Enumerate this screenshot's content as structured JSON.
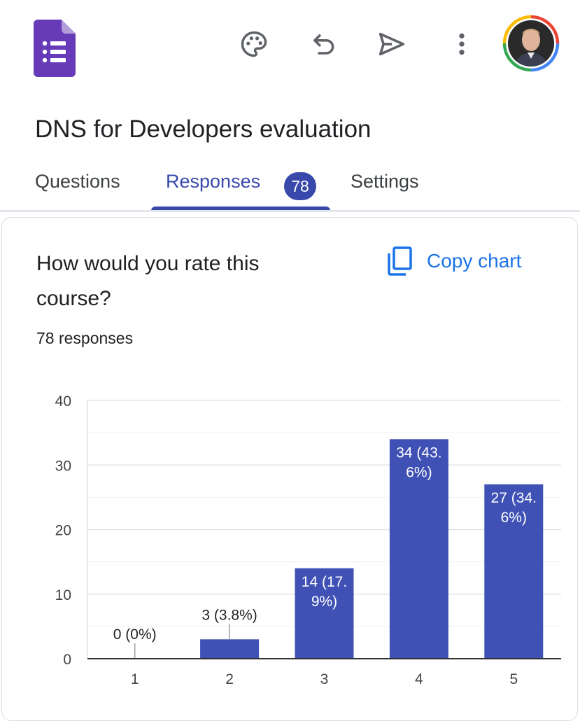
{
  "toolbar": {
    "icons": [
      "palette-icon",
      "undo-icon",
      "send-icon",
      "more-vert-icon"
    ],
    "avatar": "avatar"
  },
  "form": {
    "title": "DNS for Developers evaluation"
  },
  "tabs": {
    "questions": "Questions",
    "responses": "Responses",
    "responses_count": "78",
    "settings": "Settings",
    "active": "responses"
  },
  "card": {
    "question": "How would you rate this course?",
    "responses_text": "78 responses",
    "copy_chart_label": "Copy chart"
  },
  "colors": {
    "accent": "#3949ab",
    "bar": "#3f51b5",
    "link": "#1a73e8",
    "forms_purple": "#673ab7"
  },
  "chart_data": {
    "type": "bar",
    "categories": [
      "1",
      "2",
      "3",
      "4",
      "5"
    ],
    "values": [
      0,
      3,
      14,
      34,
      27
    ],
    "labels": [
      "0 (0%)",
      "3 (3.8%)",
      "14 (17.9%)",
      "34 (43.6%)",
      "27 (34.6%)"
    ],
    "ylim": [
      0,
      40
    ],
    "yticks": [
      0,
      10,
      20,
      30,
      40
    ],
    "grid": true
  }
}
